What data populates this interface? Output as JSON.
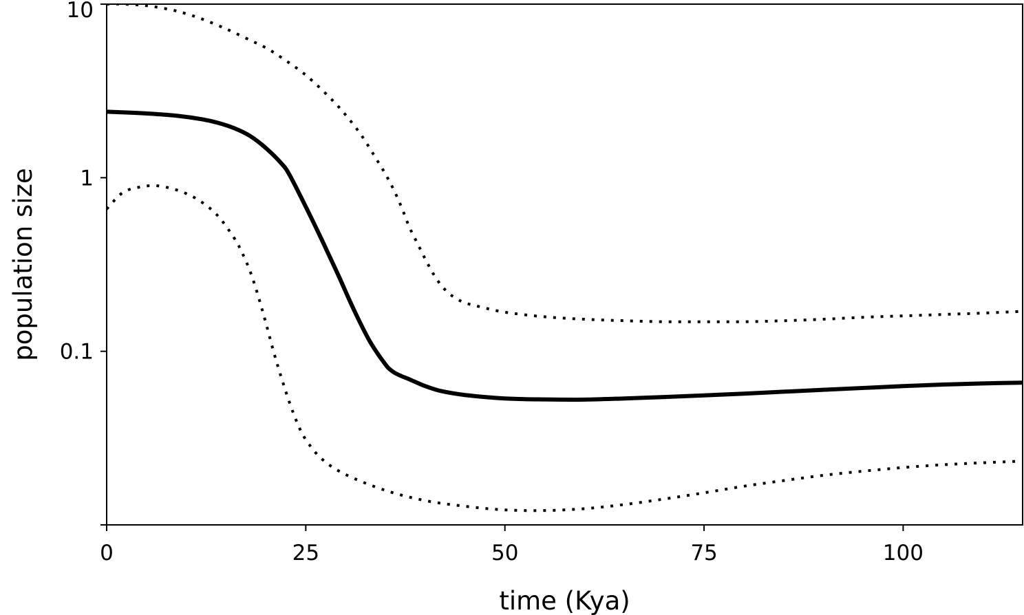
{
  "chart_data": {
    "type": "line",
    "xlabel": "time (Kya)",
    "ylabel": "population size",
    "xlim": [
      0,
      115
    ],
    "ylim": [
      0.01,
      10
    ],
    "yscale": "log",
    "grid": false,
    "x_ticks": [
      {
        "value": 0,
        "label": "0"
      },
      {
        "value": 25,
        "label": "25"
      },
      {
        "value": 50,
        "label": "50"
      },
      {
        "value": 75,
        "label": "75"
      },
      {
        "value": 100,
        "label": "100"
      }
    ],
    "y_ticks": [
      {
        "value": 10,
        "label": "10"
      },
      {
        "value": 1,
        "label": "1"
      },
      {
        "value": 0.1,
        "label": "0.1"
      },
      {
        "value": 0.01,
        "label": ""
      }
    ],
    "colors": {
      "line": "#000000",
      "axis": "#000000"
    },
    "series": [
      {
        "style": "dotted",
        "x": [
          0,
          2,
          5,
          8,
          10,
          12,
          15,
          18,
          20,
          22,
          25,
          28,
          30,
          32,
          34,
          35,
          36,
          37,
          38,
          39,
          40,
          41,
          42,
          43,
          44,
          45,
          47,
          50,
          55,
          60,
          65,
          70,
          75,
          80,
          85,
          90,
          95,
          100,
          105,
          110,
          115
        ],
        "y": [
          10.0,
          10.0,
          9.8,
          9.3,
          8.8,
          8.2,
          7.2,
          6.2,
          5.6,
          4.9,
          3.9,
          2.9,
          2.3,
          1.75,
          1.25,
          1.05,
          0.86,
          0.68,
          0.52,
          0.42,
          0.34,
          0.28,
          0.24,
          0.215,
          0.2,
          0.19,
          0.18,
          0.168,
          0.158,
          0.153,
          0.15,
          0.148,
          0.148,
          0.148,
          0.15,
          0.153,
          0.157,
          0.16,
          0.163,
          0.166,
          0.17
        ]
      },
      {
        "style": "solid",
        "x": [
          0,
          3,
          6,
          9,
          12,
          14,
          16,
          18,
          20,
          22,
          23,
          25,
          27,
          29,
          31,
          33,
          35,
          36,
          37,
          38,
          40,
          42,
          45,
          50,
          55,
          60,
          65,
          70,
          75,
          80,
          85,
          90,
          95,
          100,
          105,
          110,
          115
        ],
        "y": [
          2.4,
          2.37,
          2.33,
          2.27,
          2.17,
          2.07,
          1.93,
          1.74,
          1.48,
          1.2,
          1.03,
          0.68,
          0.44,
          0.28,
          0.175,
          0.115,
          0.084,
          0.076,
          0.072,
          0.069,
          0.063,
          0.059,
          0.056,
          0.0535,
          0.0528,
          0.0527,
          0.0535,
          0.0545,
          0.0557,
          0.057,
          0.0585,
          0.06,
          0.0615,
          0.063,
          0.0643,
          0.0653,
          0.066
        ]
      },
      {
        "style": "dotted",
        "x": [
          0,
          2,
          4,
          6,
          8,
          10,
          12,
          14,
          16,
          17,
          18,
          19,
          20,
          21,
          22,
          23,
          24,
          25,
          27,
          30,
          35,
          40,
          45,
          50,
          55,
          60,
          65,
          70,
          75,
          80,
          85,
          90,
          95,
          100,
          105,
          110,
          115
        ],
        "y": [
          0.66,
          0.82,
          0.88,
          0.9,
          0.87,
          0.81,
          0.72,
          0.6,
          0.45,
          0.37,
          0.29,
          0.21,
          0.145,
          0.098,
          0.069,
          0.05,
          0.038,
          0.031,
          0.024,
          0.0195,
          0.0158,
          0.0138,
          0.0128,
          0.0122,
          0.0121,
          0.0124,
          0.0131,
          0.0141,
          0.0153,
          0.0167,
          0.018,
          0.0193,
          0.0204,
          0.0214,
          0.0222,
          0.0228,
          0.0233
        ]
      }
    ]
  }
}
